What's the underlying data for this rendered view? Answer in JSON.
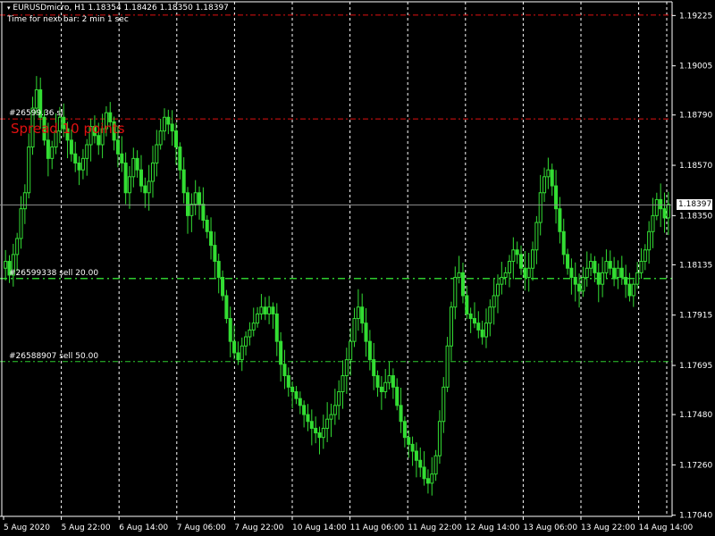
{
  "header": {
    "symbol_line": "EURUSDmicro, H1  1.18354 1.18426 1.18350 1.18397",
    "timer": "Time for next bar: 2 min 1 sec"
  },
  "spread_text": "Spread 10 points",
  "current_price": "1.18397",
  "orders": [
    {
      "label": "#26599.36 sl",
      "price": 1.18773,
      "color": "#e01010"
    },
    {
      "label": "#26599338 sell 20.00",
      "price": 1.18075,
      "color": "#2ecc2e"
    },
    {
      "label": "#26588907 sell 50.00",
      "price": 1.17712,
      "color": "#2ecc2e"
    }
  ],
  "top_line": {
    "price": 1.19227,
    "color": "#e01010"
  },
  "colors": {
    "background": "#000000",
    "candle": "#33dd33",
    "axis": "#ffffff",
    "grid": "#ffffff"
  },
  "chart_data": {
    "type": "line",
    "ylim": [
      1.17035,
      1.19285
    ],
    "y_ticks": [
      "1.19225",
      "1.19005",
      "1.18790",
      "1.18570",
      "1.18350",
      "1.18135",
      "1.17915",
      "1.17695",
      "1.17480",
      "1.17260",
      "1.17040"
    ],
    "y_labels": [
      "1.19225",
      "1.19005",
      "1.18790",
      "1.18570",
      "1.18350",
      "1.18135",
      "1.17915",
      "1.17695",
      "1.17480",
      "1.17260",
      "1.17040"
    ],
    "y_label_prices": [
      1.19225,
      1.19005,
      1.1879,
      1.1857,
      1.1835,
      1.18135,
      1.17915,
      1.17695,
      1.1748,
      1.1726,
      1.1704
    ],
    "y_label_texts": [
      "1.19225",
      "1.19005",
      "1.18790",
      "1.18570",
      "1.18350",
      "1.18135",
      "1.17915",
      "1.17695",
      "1.17480",
      "1.17260",
      "1.17040"
    ],
    "x_labels": [
      "5 Aug 2020",
      "5 Aug 22:00",
      "6 Aug 14:00",
      "7 Aug 06:00",
      "7 Aug 22:00",
      "10 Aug 14:00",
      "11 Aug 06:00",
      "11 Aug 22:00",
      "12 Aug 14:00",
      "13 Aug 06:00",
      "13 Aug 22:00",
      "14 Aug 14:00"
    ],
    "price_series": [
      1.1815,
      1.1809,
      1.1818,
      1.1825,
      1.1838,
      1.1845,
      1.1865,
      1.1882,
      1.189,
      1.1878,
      1.1868,
      1.186,
      1.1865,
      1.1872,
      1.1878,
      1.1873,
      1.1868,
      1.1862,
      1.1858,
      1.1855,
      1.186,
      1.1866,
      1.1874,
      1.187,
      1.1866,
      1.1873,
      1.188,
      1.1876,
      1.1868,
      1.1862,
      1.1858,
      1.1845,
      1.1852,
      1.186,
      1.1855,
      1.1848,
      1.1845,
      1.185,
      1.1858,
      1.1866,
      1.1872,
      1.1878,
      1.1875,
      1.1872,
      1.1865,
      1.1855,
      1.1845,
      1.1835,
      1.184,
      1.1845,
      1.184,
      1.1833,
      1.1828,
      1.1822,
      1.1815,
      1.1808,
      1.18,
      1.179,
      1.178,
      1.1775,
      1.1772,
      1.1778,
      1.1782,
      1.1785,
      1.1788,
      1.1792,
      1.1795,
      1.1792,
      1.1795,
      1.1792,
      1.178,
      1.177,
      1.1765,
      1.176,
      1.1758,
      1.1755,
      1.1752,
      1.1748,
      1.1745,
      1.1742,
      1.174,
      1.1738,
      1.1742,
      1.1746,
      1.1748,
      1.1752,
      1.1758,
      1.1765,
      1.1772,
      1.178,
      1.179,
      1.1795,
      1.1788,
      1.178,
      1.1772,
      1.1765,
      1.176,
      1.1758,
      1.1762,
      1.1765,
      1.176,
      1.1752,
      1.1745,
      1.1738,
      1.1735,
      1.1732,
      1.1728,
      1.1725,
      1.172,
      1.1718,
      1.1722,
      1.173,
      1.1745,
      1.176,
      1.1778,
      1.1795,
      1.1808,
      1.181,
      1.18,
      1.1792,
      1.179,
      1.1788,
      1.1785,
      1.1782,
      1.1788,
      1.1795,
      1.18,
      1.1805,
      1.1808,
      1.181,
      1.1815,
      1.182,
      1.1818,
      1.1812,
      1.1808,
      1.1812,
      1.182,
      1.1832,
      1.1845,
      1.1852,
      1.1855,
      1.1848,
      1.1838,
      1.1828,
      1.1818,
      1.1812,
      1.1808,
      1.1805,
      1.1802,
      1.1808,
      1.1812,
      1.1815,
      1.181,
      1.1805,
      1.181,
      1.1815,
      1.1812,
      1.1808,
      1.1812,
      1.1808,
      1.1805,
      1.18,
      1.1805,
      1.181,
      1.1815,
      1.182,
      1.1828,
      1.1835,
      1.1842,
      1.1838,
      1.1834,
      1.184
    ]
  }
}
